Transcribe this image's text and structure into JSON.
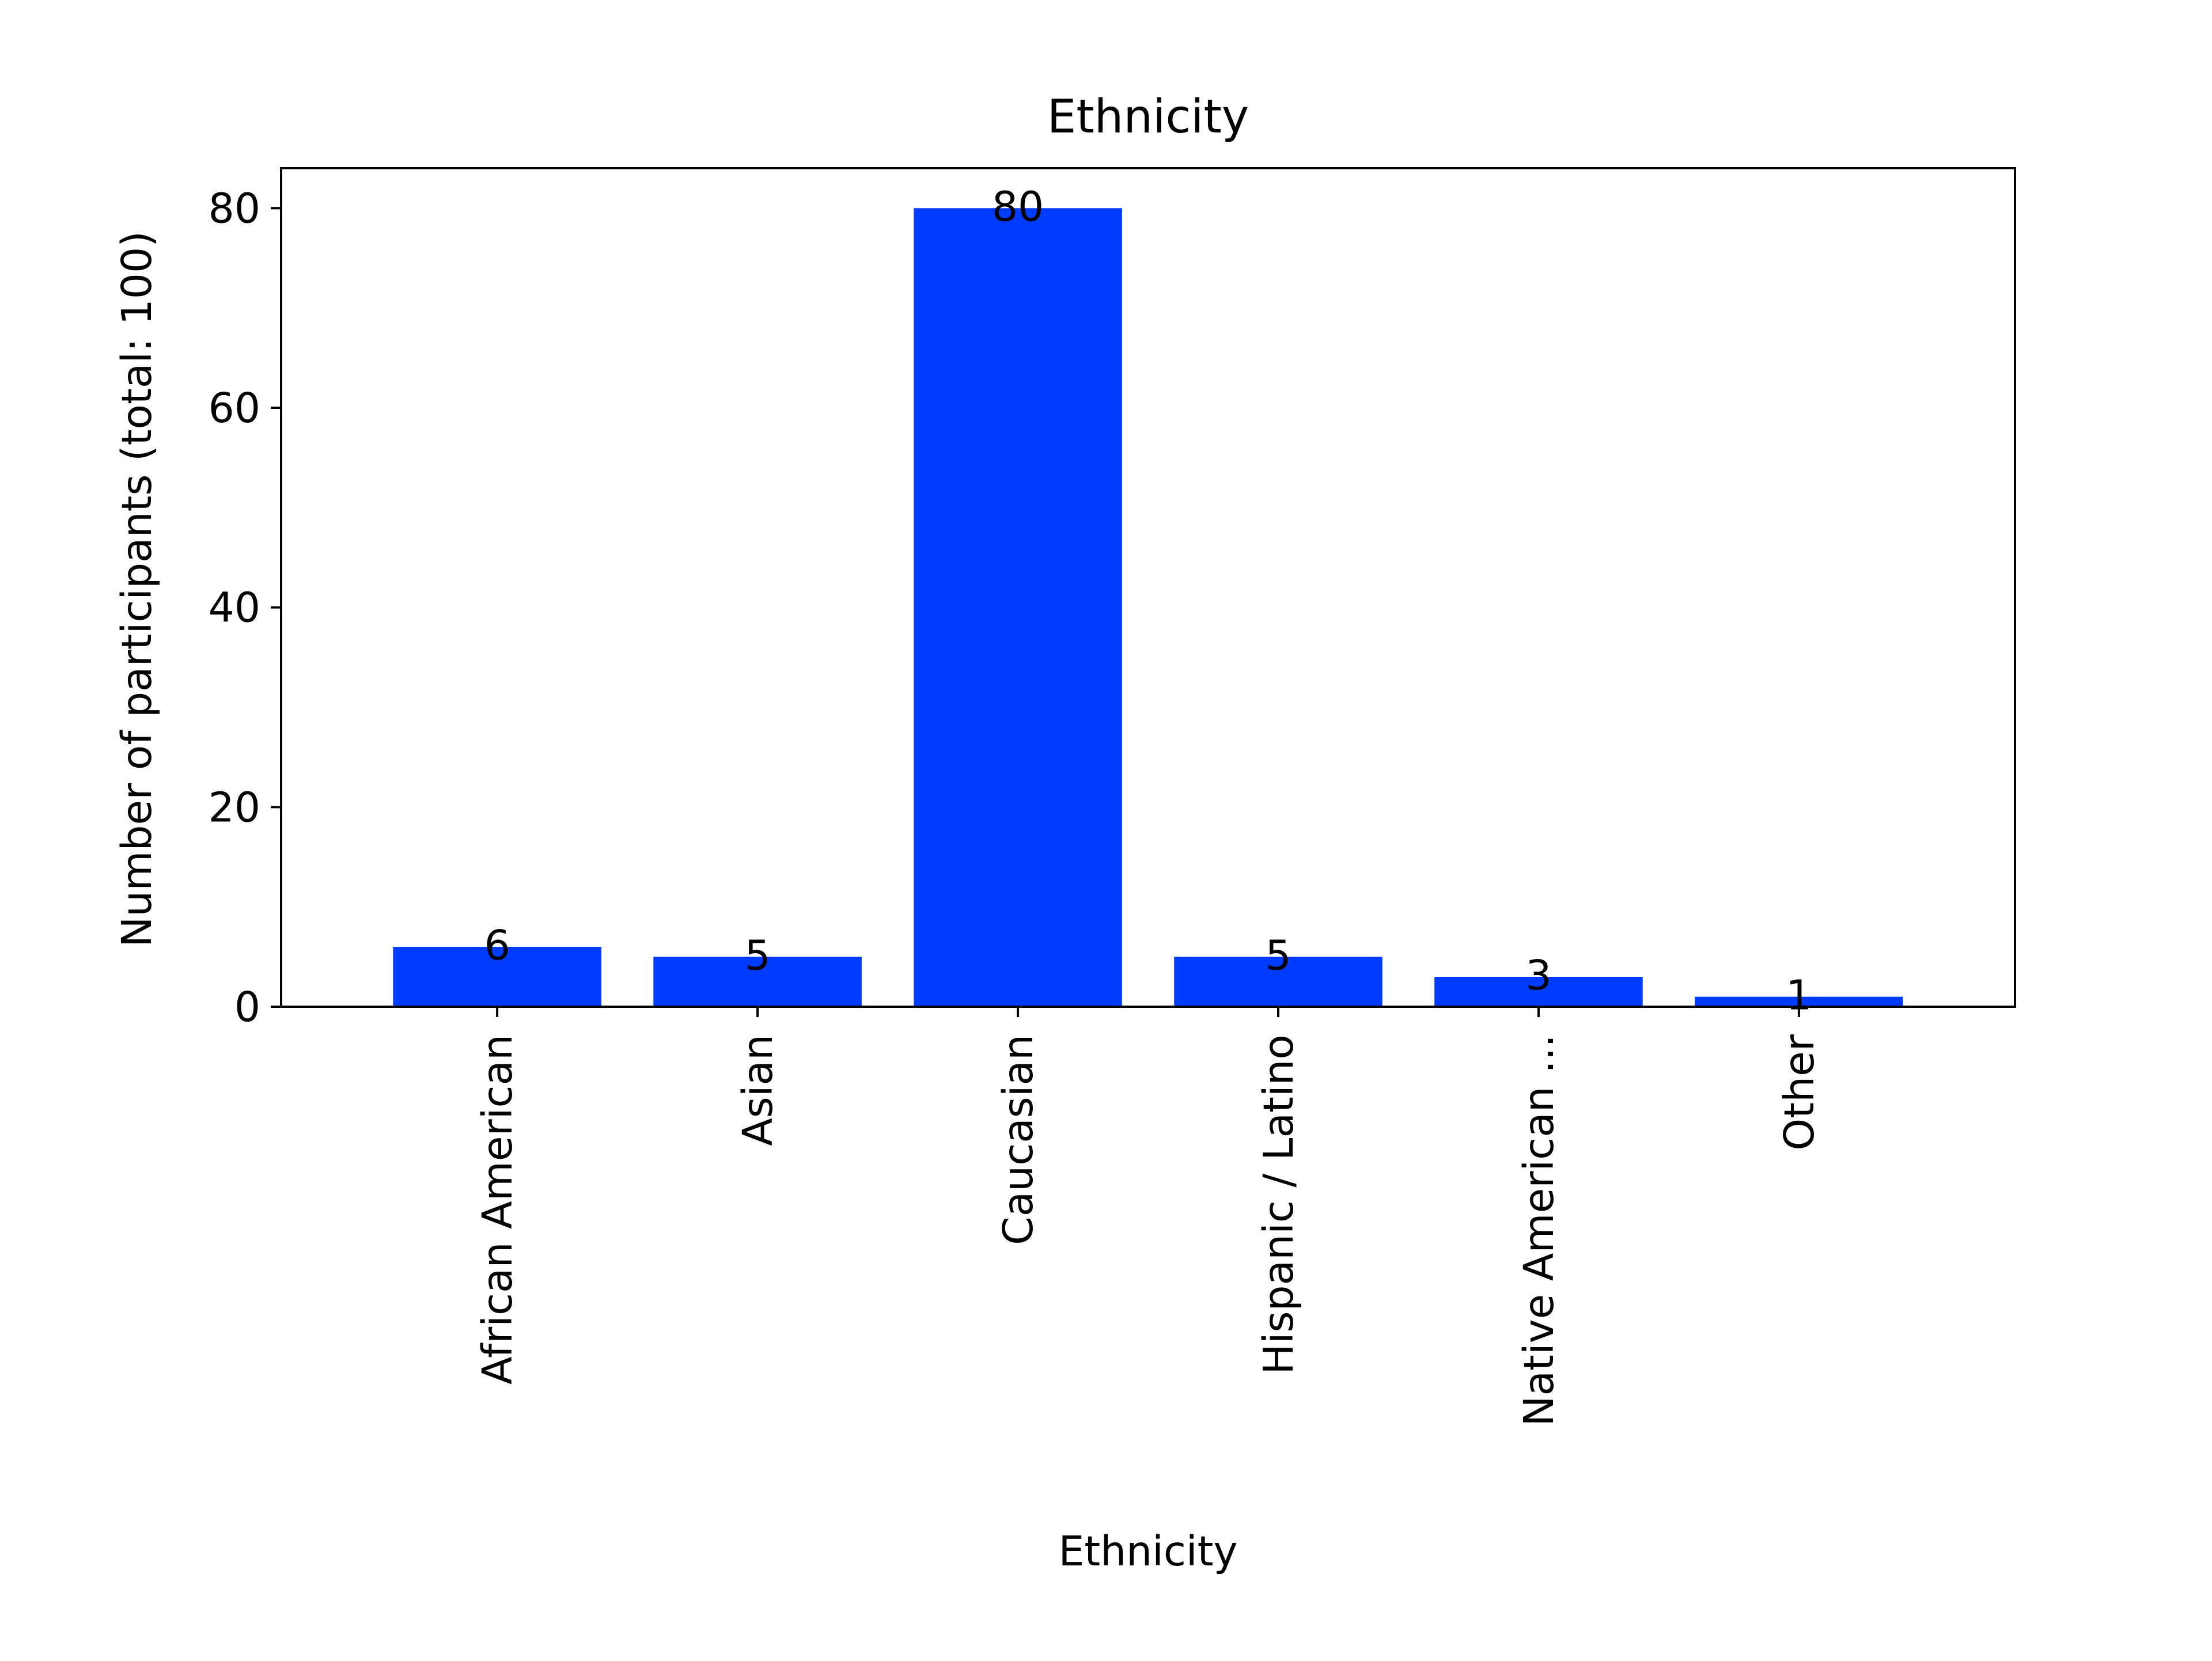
{
  "chart_data": {
    "type": "bar",
    "title": "Ethnicity",
    "xlabel": "Ethnicity",
    "ylabel": "Number of participants (total: 100)",
    "categories": [
      "African American",
      "Asian",
      "Caucasian",
      "Hispanic / Latino",
      "Native American ...",
      "Other"
    ],
    "values": [
      6,
      5,
      80,
      5,
      3,
      1
    ],
    "data_labels": [
      "6",
      "5",
      "80",
      "5",
      "3",
      "1"
    ],
    "ylim": [
      0,
      84
    ],
    "yticks": [
      0,
      20,
      40,
      60,
      80
    ],
    "ytick_labels": [
      "0",
      "20",
      "40",
      "60",
      "80"
    ],
    "bar_color": "#003cff",
    "grid": false,
    "legend": "none"
  }
}
